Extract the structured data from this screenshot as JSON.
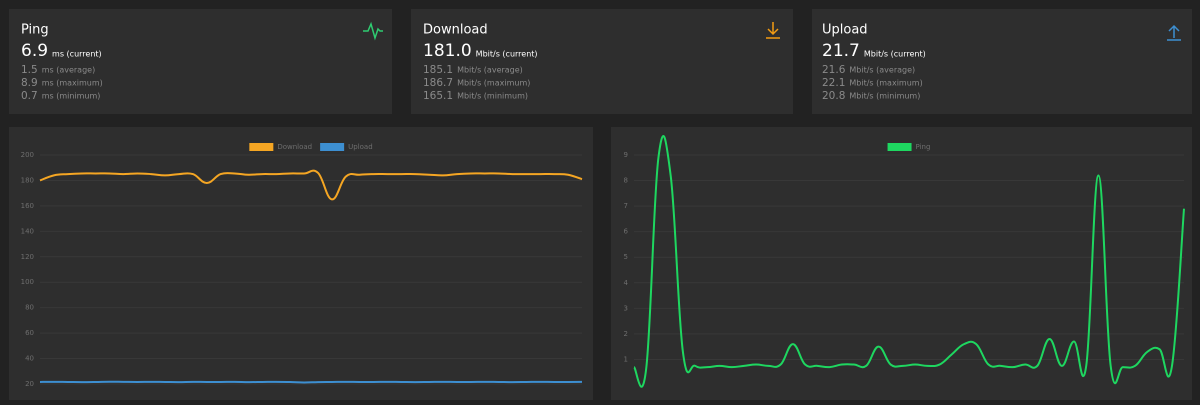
{
  "cards": [
    {
      "title": "Ping",
      "current": {
        "value": "6.9",
        "label": "ms (current)"
      },
      "stats": [
        {
          "value": "1.5",
          "label": "ms (average)"
        },
        {
          "value": "8.9",
          "label": "ms (maximum)"
        },
        {
          "value": "0.7",
          "label": "ms (minimum)"
        }
      ]
    },
    {
      "title": "Download",
      "current": {
        "value": "181.0",
        "label": "Mbit/s (current)"
      },
      "stats": [
        {
          "value": "185.1",
          "label": "Mbit/s (average)"
        },
        {
          "value": "186.7",
          "label": "Mbit/s (maximum)"
        },
        {
          "value": "165.1",
          "label": "Mbit/s (minimum)"
        }
      ]
    },
    {
      "title": "Upload",
      "current": {
        "value": "21.7",
        "label": "Mbit/s (current)"
      },
      "stats": [
        {
          "value": "21.6",
          "label": "Mbit/s (average)"
        },
        {
          "value": "22.1",
          "label": "Mbit/s (maximum)"
        },
        {
          "value": "20.8",
          "label": "Mbit/s (minimum)"
        }
      ]
    }
  ],
  "chart_data": [
    {
      "type": "line",
      "series": [
        {
          "name": "Download",
          "color": "#f5a623",
          "values": [
            180,
            184,
            185,
            185.5,
            185.5,
            185.5,
            185,
            185.5,
            185,
            184,
            185,
            185,
            178,
            185,
            185.5,
            184.5,
            185,
            185,
            185.5,
            185.5,
            186,
            165.1,
            183,
            184.5,
            185,
            185,
            185,
            185,
            184.5,
            184,
            185,
            185.5,
            185.5,
            185.5,
            185,
            185,
            185,
            185,
            184.5,
            181
          ]
        },
        {
          "name": "Upload",
          "color": "#3d8fd1",
          "values": [
            21.6,
            21.7,
            21.6,
            21.5,
            21.6,
            21.8,
            21.7,
            21.6,
            21.7,
            21.6,
            21.5,
            21.7,
            21.6,
            21.6,
            21.7,
            21.5,
            21.6,
            21.7,
            21.6,
            21.2,
            21.5,
            21.6,
            21.7,
            21.6,
            21.6,
            21.7,
            21.6,
            21.5,
            21.6,
            21.7,
            21.6,
            21.6,
            21.7,
            21.6,
            21.5,
            21.6,
            21.7,
            21.6,
            21.6,
            21.7
          ]
        }
      ],
      "ylim": [
        20,
        200
      ],
      "yticks": [
        20,
        40,
        60,
        80,
        100,
        120,
        140,
        160,
        180,
        200
      ],
      "grid": true
    },
    {
      "type": "line",
      "series": [
        {
          "name": "Ping",
          "color": "#1ed760",
          "values": [
            0.7,
            0.65,
            8.9,
            8.2,
            1.3,
            0.75,
            0.7,
            0.75,
            0.7,
            0.75,
            0.8,
            0.75,
            0.8,
            1.6,
            0.8,
            0.75,
            0.7,
            0.8,
            0.8,
            0.75,
            1.5,
            0.8,
            0.75,
            0.8,
            0.75,
            0.8,
            1.2,
            1.6,
            1.6,
            0.8,
            0.75,
            0.7,
            0.8,
            0.75,
            1.8,
            0.75,
            1.7,
            0.75,
            8.2,
            0.75,
            0.7,
            0.75,
            1.3,
            1.4,
            0.7,
            6.9
          ]
        }
      ],
      "ylim": [
        0,
        9
      ],
      "yticks": [
        1,
        2,
        3,
        4,
        5,
        6,
        7,
        8,
        9
      ],
      "grid": true
    }
  ]
}
